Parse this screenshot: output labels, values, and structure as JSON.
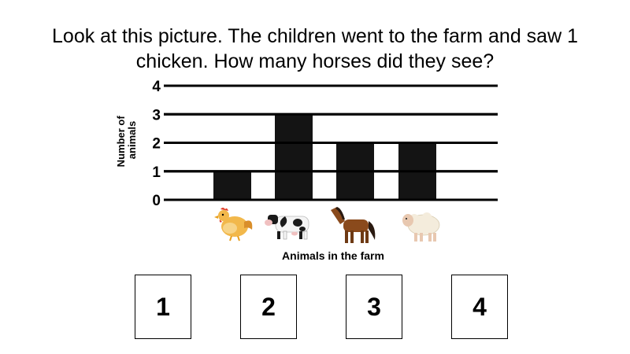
{
  "question": {
    "line1": "Look at this picture. The children went to the farm and saw 1",
    "line2": "chicken. How many horses did they see?"
  },
  "chart_data": {
    "type": "bar",
    "categories": [
      "chicken",
      "cow",
      "horse",
      "sheep"
    ],
    "values": [
      1,
      3,
      2,
      2
    ],
    "ylim": [
      0,
      4
    ],
    "yticks": [
      "0",
      "1",
      "2",
      "3",
      "4"
    ],
    "ylabel_line1": "Number of",
    "ylabel_line2": "animals",
    "xlabel": "Animals in the farm",
    "grid": true,
    "bar_color": "#141414"
  },
  "answers": [
    {
      "label": "1"
    },
    {
      "label": "2"
    },
    {
      "label": "3"
    },
    {
      "label": "4"
    }
  ]
}
